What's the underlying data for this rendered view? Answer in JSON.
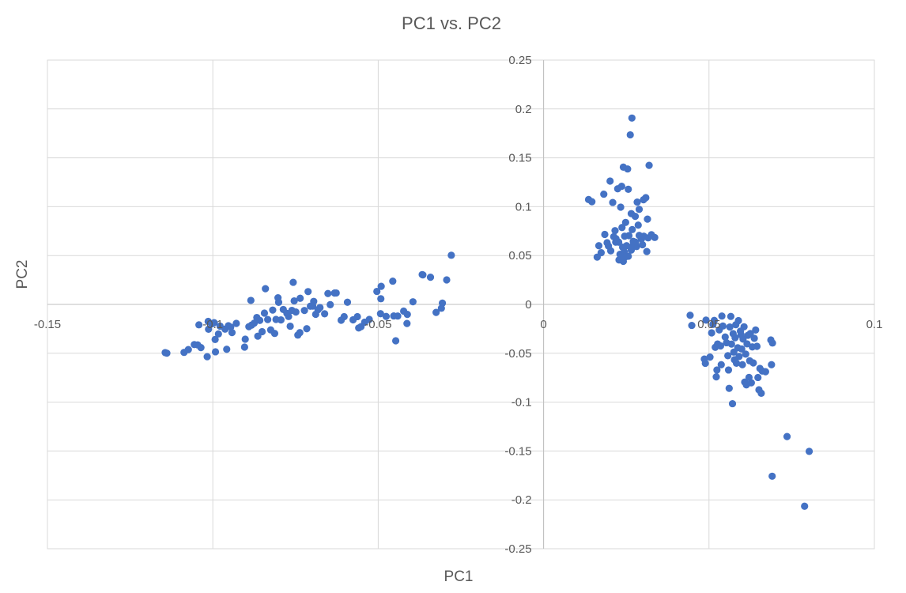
{
  "chart_data": {
    "type": "scatter",
    "title": "PC1 vs. PC2",
    "xlabel": "PC1",
    "ylabel": "PC2",
    "xlim": [
      -0.15,
      0.1
    ],
    "ylim": [
      -0.25,
      0.25
    ],
    "x_ticks": [
      -0.15,
      -0.1,
      -0.05,
      0,
      0.05,
      0.1
    ],
    "x_tick_labels": [
      "-0.15",
      "-0.1",
      "-0.05",
      "0",
      "0.05",
      "0.1"
    ],
    "y_ticks": [
      0.25,
      0.2,
      0.15,
      0.1,
      0.05,
      0,
      -0.05,
      -0.1,
      -0.15,
      -0.2,
      -0.25
    ],
    "y_tick_labels": [
      "0.25",
      "0.2",
      "0.15",
      "0.1",
      "0.05",
      "0",
      "-0.05",
      "-0.1",
      "-0.15",
      "-0.2",
      "-0.25"
    ],
    "grid": true,
    "marker_color": "#4472C4",
    "series": [
      {
        "points": [
          [
            -0.1144,
            -0.0493
          ],
          [
            -0.1139,
            -0.0499
          ],
          [
            -0.1087,
            -0.0491
          ],
          [
            -0.1074,
            -0.0462
          ],
          [
            -0.1056,
            -0.0411
          ],
          [
            -0.1046,
            -0.0414
          ],
          [
            -0.1036,
            -0.0442
          ],
          [
            -0.1042,
            -0.0209
          ],
          [
            -0.1014,
            -0.0174
          ],
          [
            -0.1003,
            -0.0199
          ],
          [
            -0.1013,
            -0.0254
          ],
          [
            -0.1017,
            -0.0535
          ],
          [
            -0.0992,
            -0.0485
          ],
          [
            -0.0996,
            -0.0187
          ],
          [
            -0.0993,
            -0.0359
          ],
          [
            -0.0983,
            -0.0302
          ],
          [
            -0.0978,
            -0.0222
          ],
          [
            -0.0963,
            -0.0253
          ],
          [
            -0.0953,
            -0.0218
          ],
          [
            -0.0946,
            -0.0232
          ],
          [
            -0.0958,
            -0.0459
          ],
          [
            -0.0942,
            -0.0288
          ],
          [
            -0.0929,
            -0.0194
          ],
          [
            -0.0904,
            -0.0437
          ],
          [
            -0.0902,
            -0.0356
          ],
          [
            -0.0891,
            -0.0228
          ],
          [
            -0.0883,
            -0.0212
          ],
          [
            -0.0875,
            -0.0192
          ],
          [
            -0.0885,
            0.0041
          ],
          [
            -0.0867,
            -0.0134
          ],
          [
            -0.0858,
            -0.0164
          ],
          [
            -0.0864,
            -0.0325
          ],
          [
            -0.0851,
            -0.0279
          ],
          [
            -0.0844,
            -0.0089
          ],
          [
            -0.0841,
            0.0161
          ],
          [
            -0.0834,
            -0.0155
          ],
          [
            -0.0825,
            -0.0261
          ],
          [
            -0.0819,
            -0.0058
          ],
          [
            -0.0813,
            -0.0297
          ],
          [
            -0.0809,
            -0.0154
          ],
          [
            -0.0801,
            0.0021
          ],
          [
            -0.0803,
            0.0068
          ],
          [
            -0.0794,
            -0.0159
          ],
          [
            -0.0787,
            -0.0052
          ],
          [
            -0.0776,
            -0.0092
          ],
          [
            -0.0771,
            -0.0124
          ],
          [
            -0.0766,
            -0.0223
          ],
          [
            -0.0761,
            -0.0061
          ],
          [
            -0.0754,
            0.0036
          ],
          [
            -0.0757,
            0.0226
          ],
          [
            -0.0749,
            -0.0078
          ],
          [
            -0.0743,
            -0.0314
          ],
          [
            -0.0737,
            -0.0289
          ],
          [
            -0.0736,
            0.0063
          ],
          [
            -0.0723,
            -0.0062
          ],
          [
            -0.0716,
            -0.0249
          ],
          [
            -0.0712,
            0.0131
          ],
          [
            -0.0705,
            -0.0018
          ],
          [
            -0.0698,
            -0.0017
          ],
          [
            -0.0695,
            0.0031
          ],
          [
            -0.0689,
            -0.0101
          ],
          [
            -0.0682,
            -0.0055
          ],
          [
            -0.0676,
            -0.0032
          ],
          [
            -0.0662,
            -0.0096
          ],
          [
            -0.0652,
            0.0111
          ],
          [
            -0.0645,
            -0.0003
          ],
          [
            -0.0632,
            0.0116
          ],
          [
            -0.0627,
            0.0117
          ],
          [
            -0.0612,
            -0.0162
          ],
          [
            -0.0603,
            -0.0125
          ],
          [
            -0.0593,
            0.0022
          ],
          [
            -0.0576,
            -0.0158
          ],
          [
            -0.0563,
            -0.0125
          ],
          [
            -0.0559,
            -0.0241
          ],
          [
            -0.0552,
            -0.0228
          ],
          [
            -0.0541,
            -0.0182
          ],
          [
            -0.0527,
            -0.0154
          ],
          [
            -0.0504,
            0.0133
          ],
          [
            -0.0492,
            0.0058
          ],
          [
            -0.0491,
            0.0185
          ],
          [
            -0.0493,
            -0.0095
          ],
          [
            -0.0476,
            -0.0123
          ],
          [
            -0.0453,
            -0.0118
          ],
          [
            -0.0441,
            -0.0119
          ],
          [
            -0.0423,
            -0.0069
          ],
          [
            -0.0412,
            -0.0102
          ],
          [
            -0.0395,
            0.0027
          ],
          [
            -0.0367,
            0.0305
          ],
          [
            -0.0342,
            0.0278
          ],
          [
            -0.0325,
            -0.0082
          ],
          [
            -0.0306,
            0.0013
          ],
          [
            -0.0309,
            -0.0039
          ],
          [
            -0.0293,
            0.0251
          ],
          [
            -0.0279,
            0.0503
          ],
          [
            -0.0456,
            0.0238
          ],
          [
            -0.0413,
            -0.0195
          ],
          [
            -0.0447,
            -0.0372
          ],
          [
            -0.0365,
            0.0302
          ]
        ]
      },
      {
        "points": [
          [
            0.0136,
            0.1073
          ],
          [
            0.0146,
            0.1051
          ],
          [
            0.0162,
            0.0484
          ],
          [
            0.0167,
            0.0601
          ],
          [
            0.0174,
            0.0529
          ],
          [
            0.0182,
            0.1128
          ],
          [
            0.0185,
            0.0716
          ],
          [
            0.0192,
            0.0631
          ],
          [
            0.0196,
            0.0598
          ],
          [
            0.0201,
            0.1262
          ],
          [
            0.0203,
            0.0548
          ],
          [
            0.0212,
            0.0693
          ],
          [
            0.0209,
            0.1043
          ],
          [
            0.0219,
            0.0672
          ],
          [
            0.0216,
            0.0755
          ],
          [
            0.0218,
            0.0637
          ],
          [
            0.0224,
            0.1183
          ],
          [
            0.0231,
            0.0513
          ],
          [
            0.0228,
            0.0455
          ],
          [
            0.0227,
            0.0637
          ],
          [
            0.0236,
            0.1209
          ],
          [
            0.0233,
            0.0995
          ],
          [
            0.0237,
            0.0787
          ],
          [
            0.0241,
            0.0441
          ],
          [
            0.0241,
            0.1405
          ],
          [
            0.0239,
            0.0586
          ],
          [
            0.0245,
            0.0698
          ],
          [
            0.0244,
            0.0537
          ],
          [
            0.0248,
            0.0839
          ],
          [
            0.0251,
            0.0601
          ],
          [
            0.0254,
            0.1386
          ],
          [
            0.0256,
            0.0493
          ],
          [
            0.0258,
            0.0704
          ],
          [
            0.0256,
            0.1178
          ],
          [
            0.0262,
            0.1735
          ],
          [
            0.0265,
            0.0929
          ],
          [
            0.0265,
            0.0556
          ],
          [
            0.0267,
            0.1907
          ],
          [
            0.0268,
            0.0766
          ],
          [
            0.0271,
            0.0606
          ],
          [
            0.0277,
            0.0901
          ],
          [
            0.0278,
            0.0637
          ],
          [
            0.0281,
            0.0592
          ],
          [
            0.0283,
            0.1047
          ],
          [
            0.0286,
            0.0811
          ],
          [
            0.0289,
            0.0973
          ],
          [
            0.0289,
            0.0706
          ],
          [
            0.0296,
            0.0671
          ],
          [
            0.0299,
            0.0611
          ],
          [
            0.0303,
            0.0698
          ],
          [
            0.0302,
            0.1071
          ],
          [
            0.0309,
            0.1092
          ],
          [
            0.0312,
            0.0541
          ],
          [
            0.0314,
            0.0873
          ],
          [
            0.0316,
            0.0681
          ],
          [
            0.0319,
            0.1423
          ],
          [
            0.0326,
            0.0713
          ],
          [
            0.0336,
            0.0685
          ],
          [
            0.0271,
            0.0645
          ],
          [
            0.0246,
            0.0483
          ]
        ]
      },
      {
        "points": [
          [
            0.0443,
            -0.0111
          ],
          [
            0.0448,
            -0.0215
          ],
          [
            0.0486,
            -0.0559
          ],
          [
            0.0489,
            -0.0603
          ],
          [
            0.0491,
            -0.0161
          ],
          [
            0.0503,
            -0.0539
          ],
          [
            0.0508,
            -0.0291
          ],
          [
            0.0512,
            -0.0204
          ],
          [
            0.0516,
            -0.0164
          ],
          [
            0.0519,
            -0.0439
          ],
          [
            0.0522,
            -0.0741
          ],
          [
            0.0524,
            -0.0671
          ],
          [
            0.0526,
            -0.0405
          ],
          [
            0.0531,
            -0.0261
          ],
          [
            0.0535,
            -0.0425
          ],
          [
            0.0537,
            -0.0617
          ],
          [
            0.0539,
            -0.0119
          ],
          [
            0.0542,
            -0.0221
          ],
          [
            0.0549,
            -0.0334
          ],
          [
            0.0553,
            -0.0392
          ],
          [
            0.0557,
            -0.0525
          ],
          [
            0.0559,
            -0.0671
          ],
          [
            0.0561,
            -0.0859
          ],
          [
            0.0563,
            -0.0231
          ],
          [
            0.0566,
            -0.0123
          ],
          [
            0.0568,
            -0.0406
          ],
          [
            0.0571,
            -0.1016
          ],
          [
            0.0573,
            -0.0299
          ],
          [
            0.0575,
            -0.0488
          ],
          [
            0.0577,
            -0.0566
          ],
          [
            0.0579,
            -0.0341
          ],
          [
            0.0581,
            -0.0208
          ],
          [
            0.0583,
            -0.0602
          ],
          [
            0.0587,
            -0.0444
          ],
          [
            0.0589,
            -0.0166
          ],
          [
            0.0591,
            -0.0533
          ],
          [
            0.0595,
            -0.0274
          ],
          [
            0.0597,
            -0.0311
          ],
          [
            0.0599,
            -0.0456
          ],
          [
            0.0601,
            -0.0617
          ],
          [
            0.0603,
            -0.0355
          ],
          [
            0.0606,
            -0.0229
          ],
          [
            0.0608,
            -0.0795
          ],
          [
            0.0611,
            -0.0509
          ],
          [
            0.0613,
            -0.0823
          ],
          [
            0.0615,
            -0.0404
          ],
          [
            0.0618,
            -0.0316
          ],
          [
            0.0621,
            -0.0747
          ],
          [
            0.0623,
            -0.0577
          ],
          [
            0.0625,
            -0.0298
          ],
          [
            0.0628,
            -0.0802
          ],
          [
            0.0631,
            -0.0435
          ],
          [
            0.0634,
            -0.0599
          ],
          [
            0.0637,
            -0.0347
          ],
          [
            0.0641,
            -0.0262
          ],
          [
            0.0645,
            -0.0429
          ],
          [
            0.0648,
            -0.0748
          ],
          [
            0.0651,
            -0.0874
          ],
          [
            0.0654,
            -0.0655
          ],
          [
            0.0658,
            -0.0909
          ],
          [
            0.0661,
            -0.0682
          ],
          [
            0.0671,
            -0.0689
          ],
          [
            0.0687,
            -0.0364
          ],
          [
            0.0692,
            -0.0395
          ],
          [
            0.0689,
            -0.0617
          ],
          [
            0.0736,
            -0.1352
          ],
          [
            0.0691,
            -0.1758
          ],
          [
            0.0803,
            -0.1504
          ],
          [
            0.0789,
            -0.2065
          ]
        ]
      }
    ]
  }
}
